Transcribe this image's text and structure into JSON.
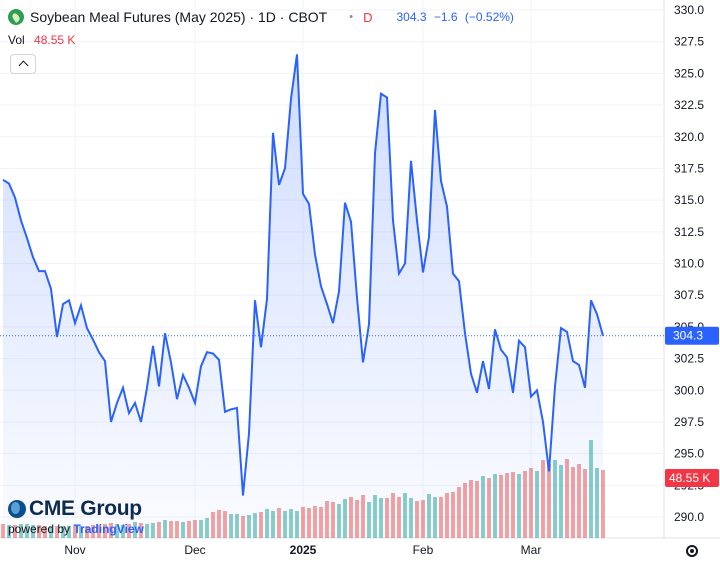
{
  "header": {
    "title": "Soybean Meal Futures (May 2025) · 1D · CBOT",
    "separator": "•",
    "badge": "D",
    "last": "304.3",
    "change": "−1.6",
    "change_pct": "(−0.52%)"
  },
  "volume": {
    "label": "Vol",
    "value": "48.55 K"
  },
  "branding": {
    "cme": "CME Group",
    "powered_prefix": "powered by",
    "powered_brand": "TradingView"
  },
  "colors": {
    "line": "#2962ff",
    "area": "#2962ff",
    "vol_up": "#26a69a",
    "vol_down": "#ef5350",
    "price_label": "#2962ff",
    "vol_label": "#f23645"
  },
  "icons": {
    "logo": "soybean-leaf-icon",
    "collapse": "chevron-up-icon",
    "settings": "gear-icon"
  },
  "chart_data": {
    "type": "area",
    "y_ticks": [
      "290.0",
      "292.5",
      "295.0",
      "297.5",
      "300.0",
      "302.5",
      "305.0",
      "307.5",
      "310.0",
      "312.5",
      "315.0",
      "317.5",
      "320.0",
      "322.5",
      "325.0",
      "327.5",
      "330.0"
    ],
    "ylim": [
      288.5,
      330
    ],
    "x_ticks": [
      "Nov",
      "Dec",
      "2025",
      "Feb",
      "Mar"
    ],
    "x_tick_positions": [
      12,
      32,
      50,
      70,
      88
    ],
    "last_price_label": "304.3",
    "last_volume_label": "48.55 K",
    "close": [
      316.6,
      316.3,
      315.2,
      313.4,
      312.0,
      310.5,
      309.4,
      309.4,
      308.0,
      304.2,
      306.8,
      307.1,
      305.3,
      306.7,
      304.9,
      304.0,
      303.0,
      302.3,
      297.5,
      299.0,
      300.2,
      298.2,
      299.0,
      297.5,
      300.2,
      303.5,
      300.3,
      304.5,
      302.2,
      299.3,
      301.2,
      300.2,
      299.0,
      301.9,
      303.0,
      302.9,
      302.4,
      298.3,
      298.5,
      298.6,
      291.7,
      296.6,
      307.1,
      303.4,
      307.2,
      320.3,
      316.2,
      317.5,
      323.0,
      326.5,
      315.5,
      314.7,
      310.7,
      308.2,
      306.8,
      305.3,
      307.8,
      314.8,
      313.3,
      307.3,
      302.2,
      305.2,
      318.7,
      323.4,
      323.1,
      313.4,
      309.2,
      310.0,
      318.1,
      313.4,
      309.3,
      312.1,
      322.1,
      316.5,
      314.5,
      309.2,
      308.6,
      304.5,
      301.3,
      299.8,
      302.3,
      300.1,
      304.8,
      303.2,
      302.6,
      299.8,
      303.9,
      303.4,
      299.5,
      300.0,
      297.5,
      293.6,
      300.3,
      304.9,
      304.6,
      302.3,
      302.0,
      300.2,
      307.1,
      306.0,
      304.3
    ],
    "volume": [
      14,
      13,
      13,
      14,
      14,
      13,
      13,
      12,
      12,
      12,
      12,
      12,
      12,
      12,
      12,
      13,
      13,
      14,
      15,
      14,
      13,
      14,
      16,
      15,
      14,
      15,
      16,
      18,
      17,
      17,
      16,
      17,
      18,
      18,
      20,
      26,
      28,
      27,
      24,
      24,
      22,
      23,
      25,
      26,
      29,
      27,
      30,
      27,
      29,
      27,
      31,
      30,
      32,
      31,
      37,
      36,
      34,
      39,
      41,
      38,
      43,
      36,
      43,
      40,
      40,
      45,
      41,
      45,
      40,
      37,
      38,
      44,
      41,
      41,
      45,
      46,
      51,
      55,
      58,
      57,
      62,
      60,
      64,
      63,
      65,
      66,
      64,
      67,
      70,
      67,
      78,
      74,
      78,
      73,
      79,
      71,
      74,
      69,
      98,
      70,
      68
    ],
    "volume_up": [
      0,
      1,
      0,
      1,
      1,
      1,
      0,
      0,
      1,
      0,
      1,
      1,
      0,
      1,
      0,
      0,
      0,
      0,
      0,
      1,
      1,
      0,
      1,
      0,
      1,
      1,
      0,
      1,
      0,
      0,
      1,
      0,
      0,
      1,
      1,
      0,
      0,
      0,
      1,
      1,
      0,
      1,
      1,
      0,
      1,
      1,
      0,
      1,
      1,
      1,
      0,
      0,
      0,
      0,
      0,
      0,
      1,
      1,
      0,
      0,
      0,
      1,
      1,
      1,
      0,
      0,
      0,
      1,
      1,
      0,
      0,
      1,
      1,
      0,
      0,
      0,
      0,
      0,
      0,
      0,
      1,
      0,
      1,
      0,
      0,
      0,
      1,
      0,
      0,
      1,
      0,
      0,
      1,
      1,
      0,
      0,
      0,
      0,
      1,
      1,
      0
    ],
    "volume_max_scale": 155
  }
}
